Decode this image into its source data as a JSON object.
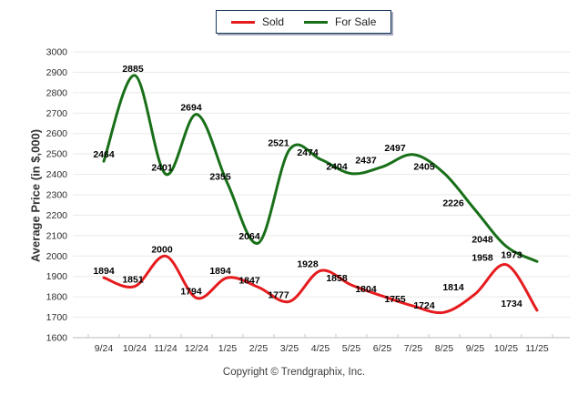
{
  "legend": {
    "items": [
      {
        "label": "Sold"
      },
      {
        "label": "For Sale"
      }
    ]
  },
  "footer": {
    "copyright": "Copyright © Trendgraphix, Inc."
  },
  "chart_data": {
    "type": "line",
    "title": "",
    "xlabel": "",
    "ylabel": "Average Price (in $,000)",
    "categories": [
      "9/24",
      "10/24",
      "11/24",
      "12/24",
      "1/25",
      "2/25",
      "3/25",
      "4/25",
      "5/25",
      "6/25",
      "7/25",
      "8/25",
      "9/25",
      "10/25",
      "11/25"
    ],
    "series": [
      {
        "name": "Sold",
        "color": "#e51b1e",
        "values": [
          1894,
          1851,
          2000,
          1794,
          1894,
          1847,
          1777,
          1928,
          1858,
          1804,
          1755,
          1724,
          1814,
          1958,
          1734
        ]
      },
      {
        "name": "For Sale",
        "color": "#186f18",
        "values": [
          2464,
          2885,
          2401,
          2694,
          2355,
          2064,
          2521,
          2474,
          2404,
          2437,
          2497,
          2405,
          2226,
          2048,
          1973
        ]
      }
    ],
    "ylim": [
      1600,
      3000
    ],
    "ytick_step": 100,
    "grid": true,
    "smooth": true,
    "data_labels": true,
    "legend_position": "top-center",
    "colors": {
      "gridline": "#e9e9e6",
      "axis": "#b9b9b9",
      "tick_label": "#2e2e2e",
      "data_label": "#000000"
    }
  }
}
